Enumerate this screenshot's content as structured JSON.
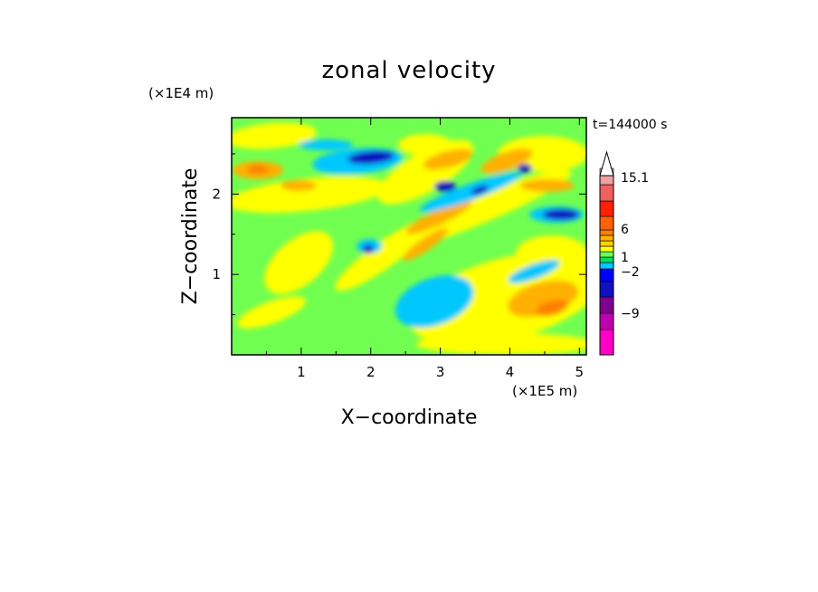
{
  "chart_data": {
    "type": "heatmap",
    "title": "zonal velocity",
    "xlabel": "X−coordinate",
    "ylabel": "Z−coordinate",
    "x_unit": "(×1E5 m)",
    "y_unit": "(×1E4 m)",
    "time_label": "t=144000 s",
    "xlim": [
      0,
      5.1
    ],
    "ylim": [
      0,
      2.95
    ],
    "x_ticks": [
      1,
      2,
      3,
      4,
      5
    ],
    "y_ticks": [
      1,
      2
    ],
    "colorbar": {
      "colors": [
        "#ff00c8",
        "#c000b0",
        "#800090",
        "#1010c0",
        "#0000ff",
        "#00c8ff",
        "#00e060",
        "#70ff50",
        "#ffff00",
        "#ffd000",
        "#ffb000",
        "#ff8000",
        "#ff6000",
        "#ff2000",
        "#f06060",
        "#f0a0a0",
        "#ffc8c8",
        "#ffffff"
      ],
      "labels": [
        "15.1",
        "6",
        "1",
        "−2",
        "−9"
      ]
    }
  }
}
